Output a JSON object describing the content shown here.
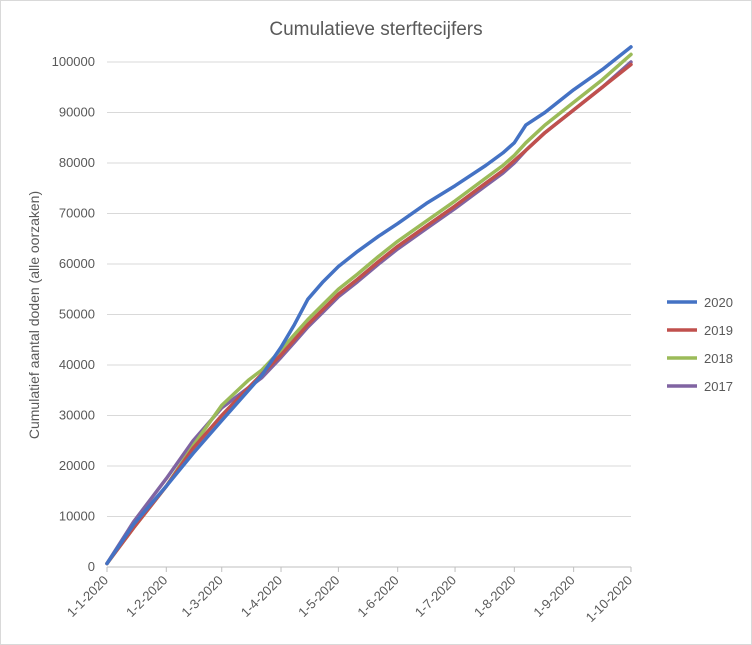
{
  "chart_data": {
    "type": "line",
    "title": "Cumulatieve sterftecijfers",
    "xlabel": "",
    "ylabel": "Cumulatief aantal doden (alle oorzaken)",
    "ylim": [
      0,
      100000
    ],
    "yticks": [
      0,
      10000,
      20000,
      30000,
      40000,
      50000,
      60000,
      70000,
      80000,
      90000,
      100000
    ],
    "xlim": [
      1,
      275
    ],
    "xtick_labels": [
      "1-1-2020",
      "1-2-2020",
      "1-3-2020",
      "1-4-2020",
      "1-5-2020",
      "1-6-2020",
      "1-7-2020",
      "1-8-2020",
      "1-9-2020",
      "1-10-2020"
    ],
    "xtick_days": [
      1,
      32,
      61,
      92,
      122,
      153,
      183,
      214,
      245,
      275
    ],
    "grid": "horizontal",
    "legend_position": "right",
    "x_day_of_year": [
      1,
      15,
      32,
      46,
      61,
      75,
      82,
      92,
      99,
      106,
      114,
      122,
      132,
      143,
      153,
      168,
      183,
      199,
      208,
      214,
      220,
      230,
      245,
      260,
      275
    ],
    "series": [
      {
        "name": "2020",
        "color": "#4472C4",
        "values": [
          700,
          8500,
          16000,
          22500,
          29000,
          35000,
          38000,
          43500,
          48000,
          53000,
          56500,
          59500,
          62500,
          65500,
          68000,
          72000,
          75500,
          79500,
          82000,
          84000,
          87500,
          90000,
          94500,
          98500,
          103000
        ]
      },
      {
        "name": "2019",
        "color": "#C0504D",
        "values": [
          700,
          7800,
          16000,
          23500,
          30000,
          35500,
          38200,
          42000,
          45000,
          48000,
          51000,
          54000,
          57000,
          60500,
          63500,
          67500,
          71500,
          76000,
          78500,
          80500,
          82500,
          86000,
          90500,
          95000,
          99500
        ]
      },
      {
        "name": "2018",
        "color": "#9BBB59",
        "values": [
          700,
          7800,
          16000,
          24000,
          32000,
          37000,
          39000,
          43000,
          46000,
          49000,
          52000,
          55000,
          58000,
          61500,
          64500,
          68500,
          72500,
          77000,
          79500,
          81500,
          84000,
          87500,
          92000,
          96500,
          101500
        ]
      },
      {
        "name": "2017",
        "color": "#8064A2",
        "values": [
          700,
          9000,
          17500,
          25000,
          31500,
          35500,
          37500,
          41500,
          44500,
          47500,
          50500,
          53500,
          56500,
          60000,
          63000,
          67000,
          71000,
          75500,
          78000,
          80000,
          82500,
          86000,
          90500,
          95000,
          100000
        ]
      }
    ]
  }
}
